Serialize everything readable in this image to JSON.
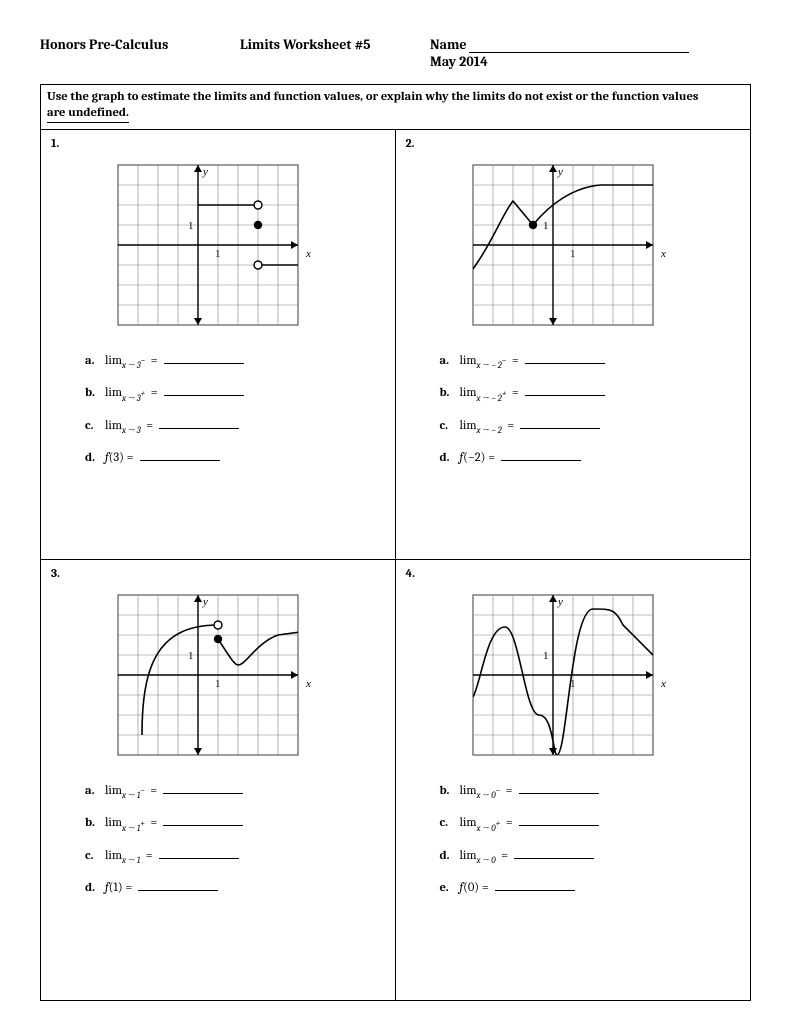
{
  "header": {
    "course": "Honors Pre-Calculus",
    "title": "Limits Worksheet #5",
    "name_label": "Name",
    "date": "May 2014"
  },
  "instructions_line1": "Use the graph to estimate the limits and function values, or explain why the limits do not exist or the function values",
  "instructions_line2": "are undefined.",
  "grid": {
    "cell_size": 20,
    "cols": 9,
    "rows": 8,
    "border_color": "#595959",
    "grid_color": "#808080",
    "bg_color": "#ffffff",
    "axis_color": "#000000",
    "curve_color": "#000000",
    "curve_stroke_width": 1.6,
    "point_radius_open": 4,
    "point_radius_fill": 4.2,
    "axis_label_font": 12
  },
  "problems": [
    {
      "num": "1",
      "graph": {
        "origin_col": 4,
        "origin_row": 4,
        "x_tick_label": "1",
        "y_tick_label": "1",
        "segments": [
          {
            "type": "line",
            "from": [
              0,
              2
            ],
            "to": [
              3,
              2
            ]
          },
          {
            "type": "line",
            "from": [
              3,
              -1
            ],
            "to": [
              5.2,
              -1
            ]
          }
        ],
        "open_points": [
          [
            3,
            2
          ],
          [
            3,
            -1
          ]
        ],
        "closed_points": [
          [
            3,
            1
          ]
        ]
      },
      "questions": [
        {
          "l": "a",
          "html": "lim<sub>x → 3<sup>−</sup></sub>&nbsp; ="
        },
        {
          "l": "b",
          "html": "lim<sub>x → 3<sup>+</sup></sub>&nbsp; ="
        },
        {
          "l": "c",
          "html": "lim<sub>x → 3</sub>&nbsp; ="
        },
        {
          "l": "d",
          "html": "<span class='italic-f'>f</span>(3) ="
        }
      ]
    },
    {
      "num": "2",
      "graph": {
        "origin_col": 4,
        "origin_row": 4,
        "x_tick_label": "1",
        "y_tick_label": "1",
        "curves": [
          "M -80 -24 C -60 4, -50 32, -40 44 L -20 20",
          "M -20 20 C -4 40, 20 58, 48 60 L 100 60"
        ],
        "closed_points": [
          [
            -1,
            1
          ]
        ]
      },
      "questions": [
        {
          "l": "a",
          "html": "lim<sub>x → − 2<sup>−</sup></sub>&nbsp; ="
        },
        {
          "l": "b",
          "html": "lim<sub>x → − 2<sup>+</sup></sub>&nbsp; ="
        },
        {
          "l": "c",
          "html": "lim<sub>x → − 2</sub>&nbsp; ="
        },
        {
          "l": "d",
          "html": "<span class='italic-f'>f</span>(−2) ="
        }
      ]
    },
    {
      "num": "3",
      "graph": {
        "origin_col": 4,
        "origin_row": 4,
        "x_tick_label": "1",
        "y_tick_label": "1",
        "curves": [
          "M -56 -60 C -56 10, -40 50, 20 50",
          "M 20 36 C 28 24, 36 10, 40 10 C 48 10, 58 32, 80 40 L 110 44"
        ],
        "open_points": [
          [
            1,
            2.5
          ]
        ],
        "closed_points": [
          [
            1,
            1.8
          ]
        ]
      },
      "questions": [
        {
          "l": "a",
          "html": "lim<sub>x → 1<sup>−</sup></sub>&nbsp; ="
        },
        {
          "l": "b",
          "html": "lim<sub>x → 1<sup>+</sup></sub>&nbsp; ="
        },
        {
          "l": "c",
          "html": "lim<sub>x → 1</sub>&nbsp; ="
        },
        {
          "l": "d",
          "html": "<span class='italic-f'>f</span>(1) ="
        }
      ]
    },
    {
      "num": "4",
      "graph": {
        "origin_col": 4,
        "origin_row": 4,
        "x_tick_label": "1",
        "y_tick_label": "1",
        "curves": [
          "M -80 -22 C -72 -8, -66 48, -48 48 C -34 48, -28 -40, -14 -40 C 0 -40, 0 -80, 4 -80 C 14 -80, 18 66, 40 66 C 58 66, 62 66, 70 50 L 100 20"
        ]
      },
      "questions": [
        {
          "l": "b",
          "html": "lim<sub>x → 0<sup>−</sup></sub>&nbsp; ="
        },
        {
          "l": "c",
          "html": "lim<sub>x → 0<sup>+</sup></sub>&nbsp; ="
        },
        {
          "l": "d",
          "html": "lim<sub>x → 0</sub>&nbsp; ="
        },
        {
          "l": "e",
          "html": "<span class='italic-f'>f</span>(0) ="
        }
      ]
    }
  ]
}
